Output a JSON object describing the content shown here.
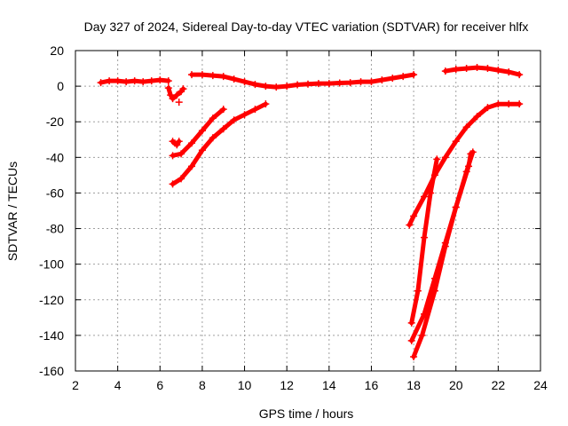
{
  "chart_data": {
    "type": "scatter",
    "title": "Day 327 of 2024, Sidereal Day-to-day VTEC variation (SDTVAR) for receiver hlfx",
    "xlabel": "GPS time / hours",
    "ylabel": "SDTVAR / TECUs",
    "xlim": [
      2,
      24
    ],
    "ylim": [
      -160,
      20
    ],
    "xticks": [
      2,
      4,
      6,
      8,
      10,
      12,
      14,
      16,
      18,
      20,
      22,
      24
    ],
    "yticks": [
      20,
      0,
      -20,
      -40,
      -60,
      -80,
      -100,
      -120,
      -140,
      -160
    ],
    "grid": true,
    "marker": "+",
    "color": "#ff0000",
    "series": [
      {
        "name": "band-main-1",
        "x": [
          3.2,
          3.6,
          4.0,
          4.4,
          4.8,
          5.2,
          5.6,
          6.0,
          6.4
        ],
        "y": [
          2,
          3,
          3,
          2.5,
          3,
          2.5,
          3,
          3.5,
          3
        ]
      },
      {
        "name": "band-main-2",
        "x": [
          7.5,
          8.0,
          8.5,
          9.0,
          9.5,
          10.0,
          10.5,
          11.0,
          11.5,
          12.0,
          12.5,
          13.0,
          13.5,
          14.0,
          14.5,
          15.0,
          15.5,
          16.0,
          16.5,
          17.0,
          17.5,
          18.0
        ],
        "y": [
          6.5,
          6.5,
          6.0,
          5.5,
          4.0,
          2.5,
          1.0,
          0.0,
          -0.5,
          0.0,
          0.8,
          1.2,
          1.5,
          1.5,
          1.8,
          2.0,
          2.5,
          2.5,
          3.5,
          4.5,
          5.5,
          6.5
        ]
      },
      {
        "name": "band-main-3",
        "x": [
          19.5,
          20.0,
          20.5,
          21.0,
          21.5,
          22.0,
          22.5,
          23.0
        ],
        "y": [
          8.5,
          9.5,
          10.0,
          10.5,
          10.0,
          9.0,
          8.0,
          6.5
        ]
      },
      {
        "name": "drop-6.5",
        "x": [
          6.4,
          6.5,
          6.6,
          6.8,
          7.0,
          7.1
        ],
        "y": [
          -1,
          -5,
          -7,
          -5,
          -3,
          -1.5
        ]
      },
      {
        "name": "scatter-6.9",
        "x": [
          6.9
        ],
        "y": [
          -9
        ]
      },
      {
        "name": "arc-a",
        "x": [
          6.6,
          6.7,
          6.8,
          6.9
        ],
        "y": [
          -31,
          -32,
          -33,
          -31
        ]
      },
      {
        "name": "arc-b",
        "x": [
          6.6,
          7.0,
          7.5,
          8.0,
          8.5,
          9.0
        ],
        "y": [
          -39,
          -38,
          -32,
          -25,
          -18,
          -13
        ]
      },
      {
        "name": "arc-c",
        "x": [
          6.6,
          7.0,
          7.5,
          8.0,
          8.5,
          9.0,
          9.5,
          10.0,
          10.5,
          11.0
        ],
        "y": [
          -55,
          -52,
          -45,
          -36,
          -29,
          -24,
          -19,
          -16,
          -13,
          -10
        ]
      },
      {
        "name": "rise-a",
        "x": [
          17.8,
          18.0,
          18.5,
          19.0,
          19.5,
          20.0,
          20.5,
          21.0,
          21.5,
          22.0,
          22.5,
          23.0
        ],
        "y": [
          -78,
          -73,
          -62,
          -50,
          -40,
          -31,
          -23,
          -17,
          -12,
          -10,
          -10,
          -10
        ]
      },
      {
        "name": "rise-b",
        "x": [
          17.9,
          18.2,
          18.5,
          18.8,
          19.1
        ],
        "y": [
          -133,
          -115,
          -85,
          -60,
          -41
        ]
      },
      {
        "name": "rise-c",
        "x": [
          17.9,
          18.5,
          19.0,
          19.5,
          20.0,
          20.5,
          20.8
        ],
        "y": [
          -143,
          -128,
          -108,
          -88,
          -68,
          -48,
          -37
        ]
      },
      {
        "name": "rise-d",
        "x": [
          18.0,
          18.4,
          19.0,
          19.5,
          20.0,
          20.6,
          20.7
        ],
        "y": [
          -152,
          -140,
          -115,
          -90,
          -68,
          -45,
          -38
        ]
      }
    ]
  }
}
